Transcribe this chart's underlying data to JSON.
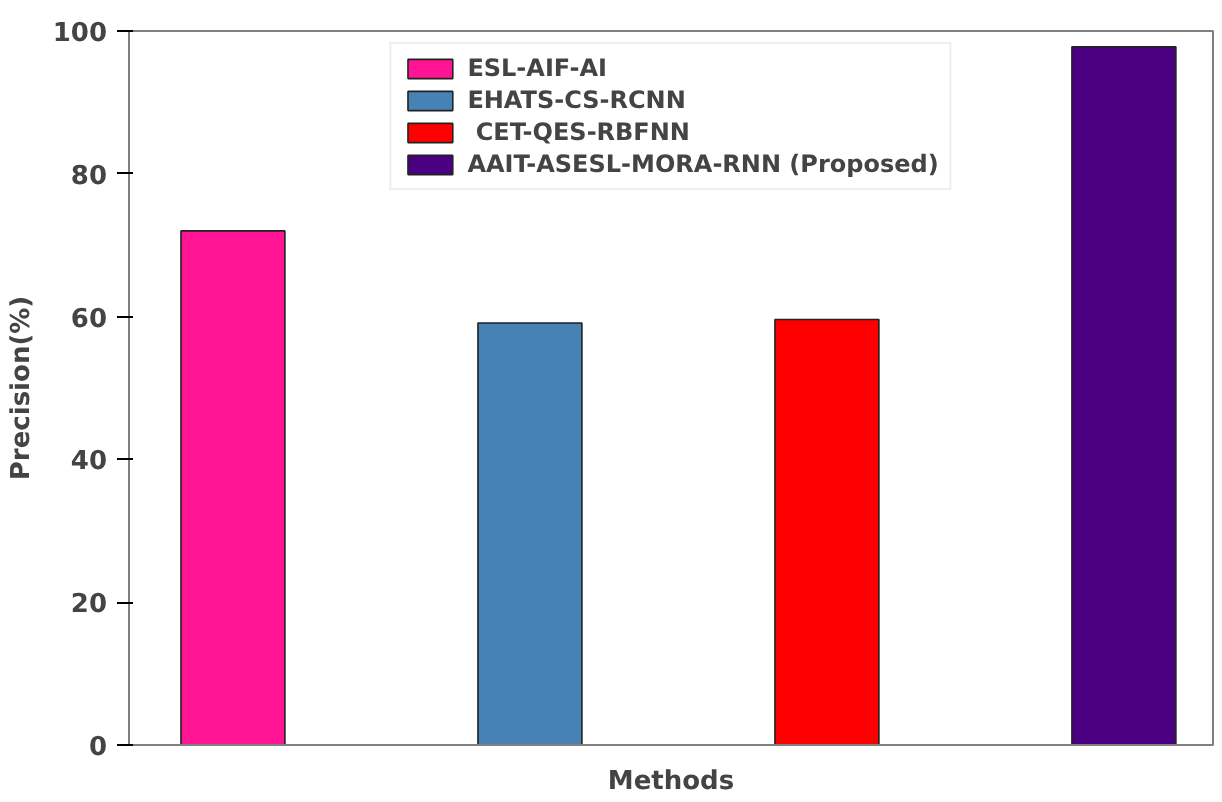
{
  "chart_data": {
    "type": "bar",
    "xlabel": "Methods",
    "ylabel": "Precision(%)",
    "categories": [
      null,
      null,
      null,
      null
    ],
    "series": [
      {
        "name": "ESL-AIF-AI",
        "color": "#ff1493",
        "values": [
          72.0,
          null,
          null,
          null
        ]
      },
      {
        "name": "EHATS-CS-RCNN",
        "color": "#4682b4",
        "values": [
          null,
          59.1,
          null,
          null
        ]
      },
      {
        "name": " CET-QES-RBFNN",
        "color": "#ff0000",
        "values": [
          null,
          null,
          59.6,
          null
        ]
      },
      {
        "name": "AAIT-ASESL-MORA-RNN (Proposed)",
        "color": "#4b0082",
        "values": [
          null,
          null,
          null,
          97.8
        ]
      }
    ],
    "ylim": [
      0,
      100
    ],
    "yticks": [
      0,
      20,
      40,
      60,
      80,
      100
    ],
    "grid": false,
    "legend": "top"
  }
}
